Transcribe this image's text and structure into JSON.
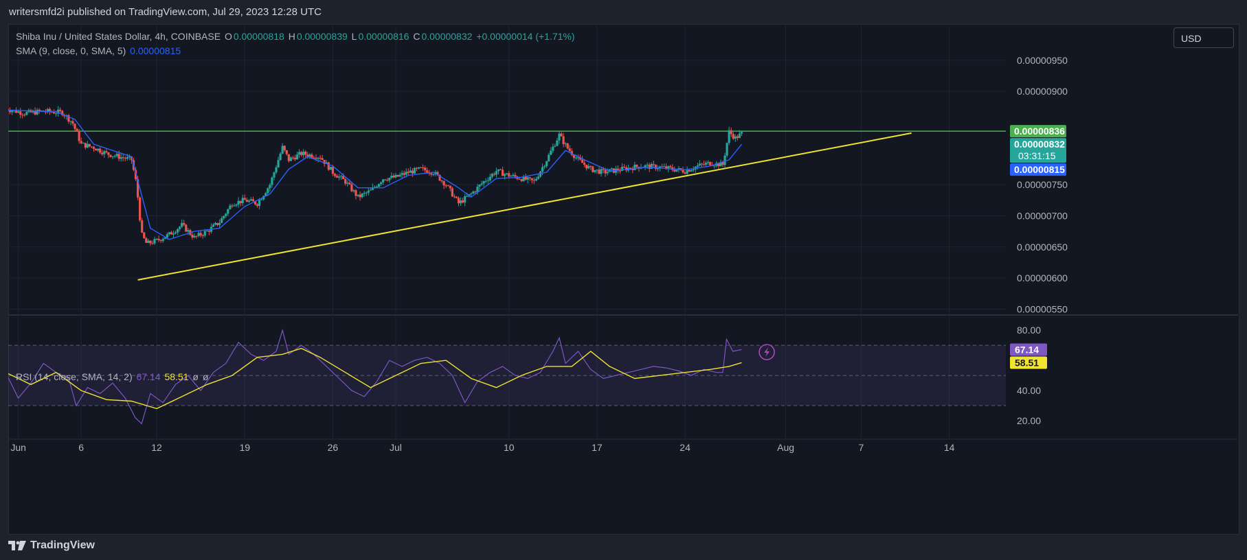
{
  "publisher_line": "writersmfd2i published on TradingView.com, Jul 29, 2023 12:28 UTC",
  "legend": {
    "symbol": "Shiba Inu / United States Dollar, 4h, COINBASE",
    "o_label": "O",
    "o": "0.00000818",
    "h_label": "H",
    "h": "0.00000839",
    "l_label": "L",
    "l": "0.00000816",
    "c_label": "C",
    "c": "0.00000832",
    "change": "+0.00000014 (+1.71%)",
    "sma_label": "SMA (9, close, 0, SMA, 5)",
    "sma_value": "0.00000815",
    "rsi_label": "RSI (14, close, SMA, 14, 2)",
    "rsi_value": "67.14",
    "rsi_ma_value": "58.51",
    "rsi_extra1": "ø",
    "rsi_extra2": "ø"
  },
  "currency_button": "USD",
  "footer": {
    "brand": "TradingView",
    "logo_icon": "tradingview-logo-icon"
  },
  "colors": {
    "background": "#131722",
    "up": "#26a69a",
    "down": "#ef5350",
    "sma": "#2962ff",
    "rsi": "#7e57c2",
    "rsi_ma": "#f0e430",
    "trendline": "#f0e430",
    "resistance": "#4caf50"
  },
  "chart_data": [
    {
      "type": "candlestick",
      "title": "Shiba Inu / United States Dollar, 4h, COINBASE",
      "x_ticks": [
        "Jun",
        "6",
        "12",
        "19",
        "26",
        "Jul",
        "10",
        "17",
        "24",
        "Aug",
        "7",
        "14"
      ],
      "x_tick_days": [
        1,
        6,
        12,
        19,
        26,
        31,
        40,
        47,
        54,
        62,
        68,
        75
      ],
      "x_range_days": [
        0.2,
        79.5
      ],
      "y_ticks": [
        "0.00000950",
        "0.00000900",
        "0.00000836",
        "0.00000832",
        "0.00000815",
        "0.00000750",
        "0.00000700",
        "0.00000650",
        "0.00000600",
        "0.00000550"
      ],
      "y_tick_values": [
        9.5e-06,
        9e-06,
        7.5e-06,
        7e-06,
        6.5e-06,
        6e-06,
        5.5e-06
      ],
      "ylim": [
        5.45e-06,
        9.95e-06
      ],
      "price_labels": [
        {
          "text": "0.00000836",
          "value": 8.36e-06,
          "color": "#4caf50"
        },
        {
          "text": "0.00000832",
          "value": 8.32e-06,
          "color": "#26a69a",
          "countdown": "03:31:15"
        },
        {
          "text": "0.00000815",
          "value": 8.15e-06,
          "color": "#2962ff"
        }
      ],
      "close_series_day_value": [
        [
          0.0,
          8.72e-06
        ],
        [
          1.5,
          8.65e-06
        ],
        [
          3.0,
          8.68e-06
        ],
        [
          4.5,
          8.66e-06
        ],
        [
          5.3,
          8.5e-06
        ],
        [
          6.0,
          8.15e-06
        ],
        [
          7.0,
          8.1e-06
        ],
        [
          8.0,
          8e-06
        ],
        [
          9.0,
          7.95e-06
        ],
        [
          10.0,
          7.9e-06
        ],
        [
          10.4,
          7.5e-06
        ],
        [
          10.8,
          6.7e-06
        ],
        [
          11.2,
          6.55e-06
        ],
        [
          12.0,
          6.6e-06
        ],
        [
          13.0,
          6.7e-06
        ],
        [
          14.0,
          6.85e-06
        ],
        [
          15.0,
          6.65e-06
        ],
        [
          16.0,
          6.75e-06
        ],
        [
          17.0,
          6.9e-06
        ],
        [
          18.0,
          7.2e-06
        ],
        [
          19.0,
          7.25e-06
        ],
        [
          20.0,
          7.2e-06
        ],
        [
          21.0,
          7.5e-06
        ],
        [
          22.0,
          8.1e-06
        ],
        [
          22.5,
          7.9e-06
        ],
        [
          23.5,
          8e-06
        ],
        [
          25.0,
          7.95e-06
        ],
        [
          26.0,
          7.7e-06
        ],
        [
          27.0,
          7.55e-06
        ],
        [
          28.0,
          7.3e-06
        ],
        [
          29.0,
          7.4e-06
        ],
        [
          30.0,
          7.6e-06
        ],
        [
          31.0,
          7.62e-06
        ],
        [
          32.0,
          7.7e-06
        ],
        [
          33.0,
          7.75e-06
        ],
        [
          34.0,
          7.7e-06
        ],
        [
          35.0,
          7.5e-06
        ],
        [
          36.0,
          7.2e-06
        ],
        [
          37.0,
          7.35e-06
        ],
        [
          38.0,
          7.55e-06
        ],
        [
          39.0,
          7.72e-06
        ],
        [
          40.0,
          7.65e-06
        ],
        [
          41.0,
          7.6e-06
        ],
        [
          42.0,
          7.55e-06
        ],
        [
          43.0,
          7.9e-06
        ],
        [
          44.0,
          8.3e-06
        ],
        [
          44.6,
          8.1e-06
        ],
        [
          45.5,
          7.9e-06
        ],
        [
          46.5,
          7.75e-06
        ],
        [
          47.5,
          7.7e-06
        ],
        [
          49.0,
          7.75e-06
        ],
        [
          50.5,
          7.8e-06
        ],
        [
          52.0,
          7.78e-06
        ],
        [
          53.0,
          7.75e-06
        ],
        [
          54.0,
          7.72e-06
        ],
        [
          55.0,
          7.8e-06
        ],
        [
          56.0,
          7.85e-06
        ],
        [
          57.0,
          7.82e-06
        ],
        [
          57.5,
          8.35e-06
        ],
        [
          58.0,
          8.25e-06
        ],
        [
          58.5,
          8.32e-06
        ]
      ],
      "sma_series_day_value": [
        [
          0.0,
          8.7e-06
        ],
        [
          4.0,
          8.67e-06
        ],
        [
          5.5,
          8.55e-06
        ],
        [
          7.0,
          8.15e-06
        ],
        [
          10.0,
          7.95e-06
        ],
        [
          11.5,
          6.8e-06
        ],
        [
          13.0,
          6.62e-06
        ],
        [
          15.0,
          6.75e-06
        ],
        [
          17.0,
          6.8e-06
        ],
        [
          19.0,
          7.15e-06
        ],
        [
          21.0,
          7.35e-06
        ],
        [
          22.5,
          7.75e-06
        ],
        [
          24.0,
          7.95e-06
        ],
        [
          26.0,
          7.8e-06
        ],
        [
          28.0,
          7.45e-06
        ],
        [
          30.0,
          7.45e-06
        ],
        [
          32.0,
          7.65e-06
        ],
        [
          34.0,
          7.7e-06
        ],
        [
          36.0,
          7.45e-06
        ],
        [
          37.0,
          7.3e-06
        ],
        [
          39.0,
          7.6e-06
        ],
        [
          41.0,
          7.62e-06
        ],
        [
          43.0,
          7.7e-06
        ],
        [
          44.5,
          8.05e-06
        ],
        [
          46.0,
          7.9e-06
        ],
        [
          48.0,
          7.72e-06
        ],
        [
          51.0,
          7.78e-06
        ],
        [
          54.0,
          7.74e-06
        ],
        [
          56.0,
          7.8e-06
        ],
        [
          57.5,
          7.9e-06
        ],
        [
          58.5,
          8.15e-06
        ]
      ],
      "horizontal_line": {
        "value": 8.36e-06,
        "from_day": 0.0,
        "to_day": 79.5
      },
      "trendline": {
        "from": [
          10.5,
          5.97e-06
        ],
        "to": [
          72.0,
          8.33e-06
        ]
      }
    },
    {
      "type": "line",
      "title": "RSI (14, close, SMA, 14, 2)",
      "y_ticks": [
        "80.00",
        "40.00",
        "20.00"
      ],
      "y_tick_values": [
        80,
        60,
        40,
        20
      ],
      "ylim": [
        10,
        86
      ],
      "band": [
        30,
        70
      ],
      "midline": 50,
      "value_labels": [
        {
          "text": "67.14",
          "value": 67.14,
          "color": "#7e57c2"
        },
        {
          "text": "58.51",
          "value": 58.51,
          "color": "#f0e430"
        }
      ],
      "rsi_series_day_value": [
        [
          0.0,
          52
        ],
        [
          1.0,
          35
        ],
        [
          2.0,
          45
        ],
        [
          3.0,
          58
        ],
        [
          4.0,
          52
        ],
        [
          5.0,
          48
        ],
        [
          5.6,
          30
        ],
        [
          6.5,
          42
        ],
        [
          7.5,
          38
        ],
        [
          8.5,
          45
        ],
        [
          9.5,
          35
        ],
        [
          10.3,
          22
        ],
        [
          10.8,
          18
        ],
        [
          11.5,
          38
        ],
        [
          12.5,
          32
        ],
        [
          13.5,
          44
        ],
        [
          14.5,
          50
        ],
        [
          15.5,
          40
        ],
        [
          16.5,
          52
        ],
        [
          17.5,
          58
        ],
        [
          18.5,
          72
        ],
        [
          19.5,
          64
        ],
        [
          20.5,
          60
        ],
        [
          21.5,
          66
        ],
        [
          22.0,
          80
        ],
        [
          22.5,
          64
        ],
        [
          23.5,
          70
        ],
        [
          24.5,
          64
        ],
        [
          25.5,
          56
        ],
        [
          26.5,
          48
        ],
        [
          27.5,
          40
        ],
        [
          28.5,
          36
        ],
        [
          29.5,
          46
        ],
        [
          30.5,
          60
        ],
        [
          31.5,
          56
        ],
        [
          32.5,
          60
        ],
        [
          33.5,
          62
        ],
        [
          34.5,
          58
        ],
        [
          35.5,
          50
        ],
        [
          36.5,
          32
        ],
        [
          37.5,
          46
        ],
        [
          38.5,
          52
        ],
        [
          39.5,
          56
        ],
        [
          40.5,
          50
        ],
        [
          41.5,
          48
        ],
        [
          42.5,
          52
        ],
        [
          43.5,
          66
        ],
        [
          44.0,
          75
        ],
        [
          44.5,
          58
        ],
        [
          45.5,
          66
        ],
        [
          46.5,
          54
        ],
        [
          47.5,
          48
        ],
        [
          48.5,
          50
        ],
        [
          49.5,
          52
        ],
        [
          50.5,
          54
        ],
        [
          51.5,
          56
        ],
        [
          52.5,
          55
        ],
        [
          53.5,
          53
        ],
        [
          54.5,
          50
        ],
        [
          55.5,
          54
        ],
        [
          56.5,
          52
        ],
        [
          57.0,
          52
        ],
        [
          57.3,
          74
        ],
        [
          57.8,
          66
        ],
        [
          58.5,
          67.14
        ]
      ],
      "rsi_ma_series_day_value": [
        [
          0.0,
          52
        ],
        [
          2.0,
          44
        ],
        [
          4.0,
          52
        ],
        [
          6.0,
          40
        ],
        [
          8.0,
          34
        ],
        [
          10.0,
          33
        ],
        [
          12.0,
          28
        ],
        [
          14.0,
          36
        ],
        [
          16.0,
          44
        ],
        [
          18.0,
          50
        ],
        [
          20.0,
          62
        ],
        [
          22.0,
          64
        ],
        [
          23.5,
          68
        ],
        [
          25.0,
          62
        ],
        [
          27.0,
          52
        ],
        [
          29.0,
          42
        ],
        [
          31.0,
          50
        ],
        [
          33.0,
          58
        ],
        [
          35.0,
          60
        ],
        [
          37.0,
          48
        ],
        [
          39.0,
          42
        ],
        [
          41.0,
          50
        ],
        [
          43.0,
          56
        ],
        [
          45.0,
          56
        ],
        [
          46.5,
          66
        ],
        [
          48.0,
          56
        ],
        [
          50.0,
          48
        ],
        [
          52.0,
          50
        ],
        [
          54.0,
          52
        ],
        [
          56.0,
          54
        ],
        [
          57.5,
          56
        ],
        [
          58.5,
          58.51
        ]
      ]
    }
  ]
}
